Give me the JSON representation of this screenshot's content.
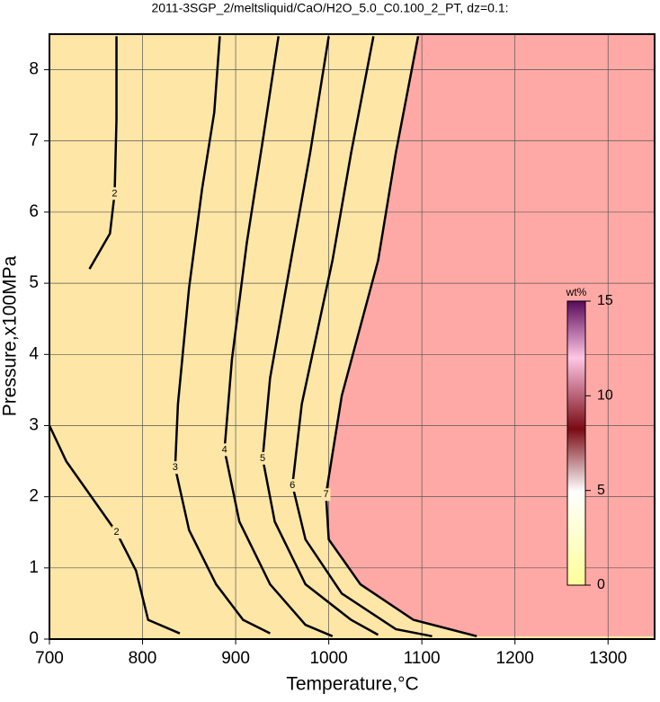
{
  "chart_data": {
    "type": "contour",
    "title": "2011-3SGP_2/meltsliquid/CaO/H2O_5.0_C0.100_2_PT, dz=0.1:",
    "x_label": "Temperature,°C",
    "y_label": "Pressure,x100MPa",
    "xlim": [
      700,
      1350
    ],
    "ylim": [
      0,
      8.5
    ],
    "xticks": [
      700,
      800,
      900,
      1000,
      1100,
      1200,
      1300
    ],
    "yticks": [
      0,
      1,
      2,
      3,
      4,
      5,
      6,
      7,
      8
    ],
    "grid": true,
    "low_color": "#fde6a6",
    "high_color": "#ffa9a6",
    "contours": [
      {
        "level": 2,
        "x": [
          700,
          718,
          745,
          772,
          793,
          806,
          840
        ],
        "y": [
          3.0,
          2.5,
          2.0,
          1.5,
          0.96,
          0.27,
          0.08
        ]
      },
      {
        "level": 2,
        "x": [
          772,
          772,
          770,
          765,
          743
        ],
        "y": [
          8.47,
          7.3,
          6.26,
          5.7,
          5.2
        ]
      },
      {
        "level": 3,
        "x": [
          883,
          877,
          864,
          850,
          838,
          835,
          850,
          879,
          908,
          937
        ],
        "y": [
          8.47,
          7.4,
          6.33,
          4.94,
          3.3,
          2.41,
          1.53,
          0.77,
          0.27,
          0.08
        ]
      },
      {
        "level": 4,
        "x": [
          946,
          930,
          912,
          896,
          888,
          904,
          937,
          975,
          1004
        ],
        "y": [
          8.47,
          7.08,
          5.57,
          3.93,
          2.66,
          1.65,
          0.77,
          0.2,
          0.04
        ]
      },
      {
        "level": 5,
        "x": [
          1000,
          980,
          961,
          937,
          929,
          942,
          975,
          1024,
          1053
        ],
        "y": [
          8.47,
          6.83,
          5.44,
          3.67,
          2.54,
          1.65,
          0.77,
          0.27,
          0.06
        ]
      },
      {
        "level": 6,
        "x": [
          1048,
          1024,
          1004,
          971,
          961,
          975,
          1014,
          1072,
          1111
        ],
        "y": [
          8.47,
          6.83,
          5.32,
          3.3,
          2.16,
          1.4,
          0.64,
          0.14,
          0.04
        ]
      },
      {
        "level": 7,
        "x": [
          1096,
          1072,
          1053,
          1014,
          997,
          1000,
          1034,
          1091,
          1159
        ],
        "y": [
          8.47,
          6.83,
          5.32,
          3.42,
          2.03,
          1.4,
          0.77,
          0.27,
          0.04
        ]
      }
    ],
    "colorbar": {
      "label": "wt%",
      "lim": [
        0,
        15
      ],
      "ticks": [
        0,
        5,
        10,
        15
      ]
    }
  }
}
